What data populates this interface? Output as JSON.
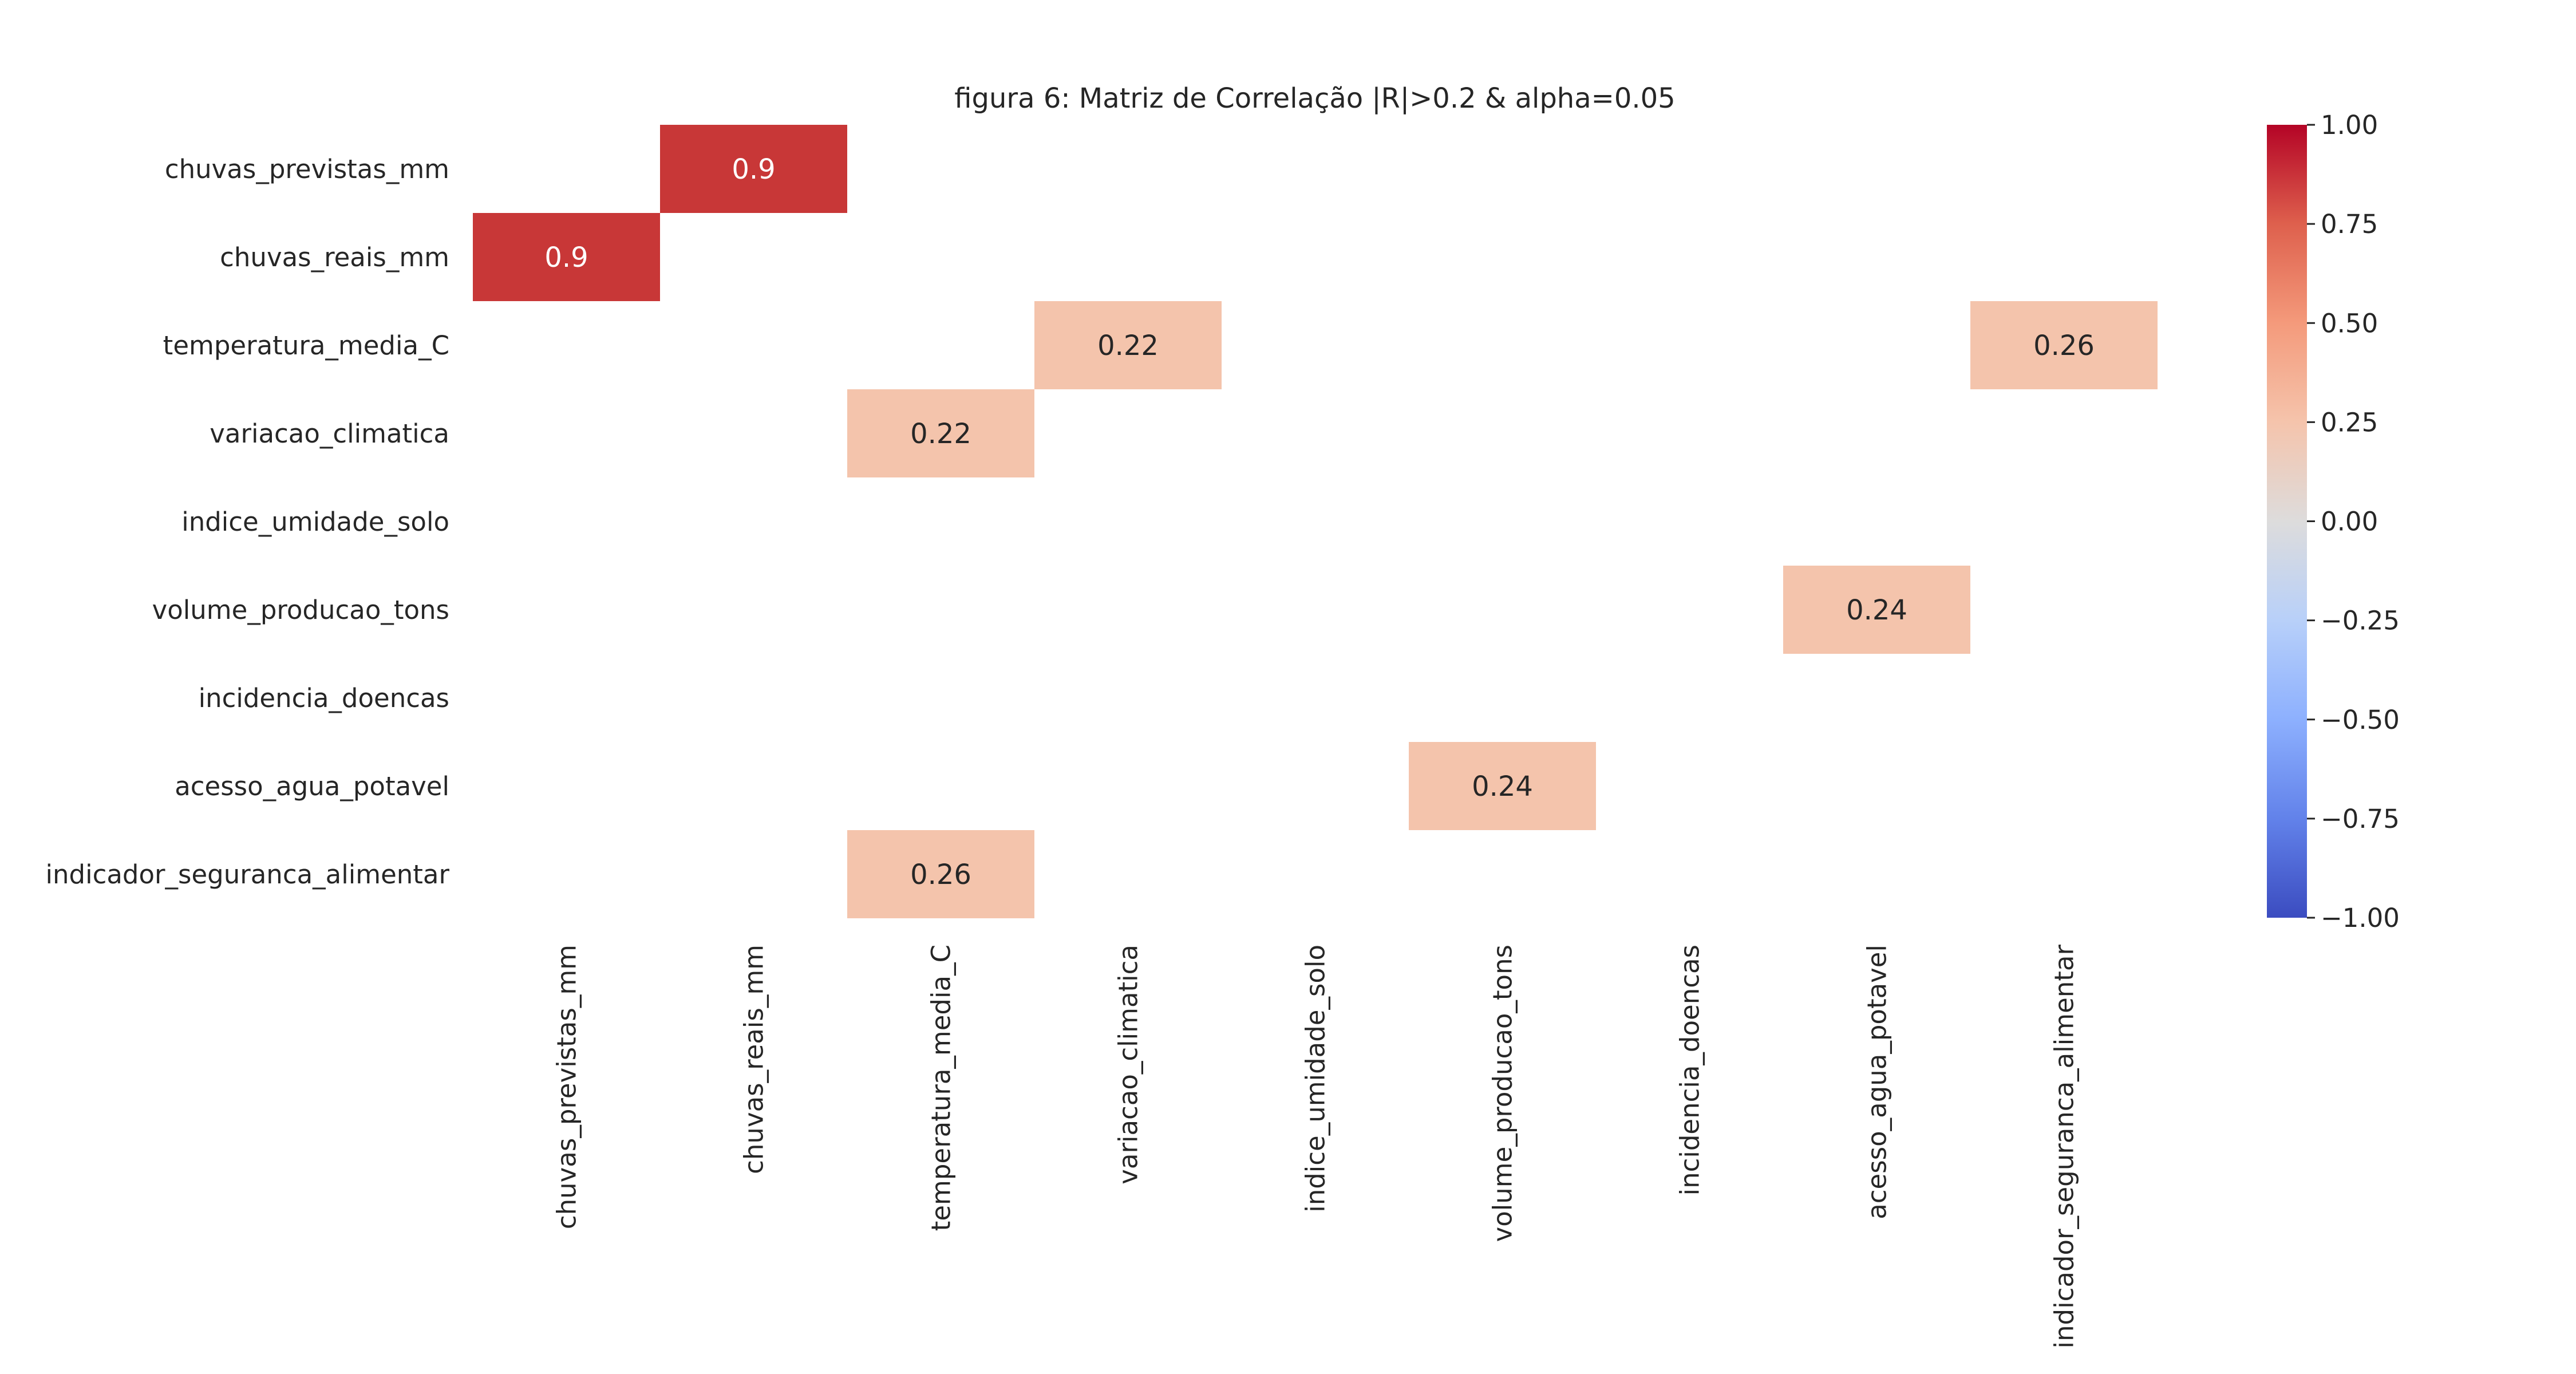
{
  "chart_data": {
    "type": "heatmap",
    "title": "figura 6: Matriz de Correlação |R|>0.2 & alpha=0.05",
    "row_labels": [
      "chuvas_previstas_mm",
      "chuvas_reais_mm",
      "temperatura_media_C",
      "variacao_climatica",
      "indice_umidade_solo",
      "volume_producao_tons",
      "incidencia_doencas",
      "acesso_agua_potavel",
      "indicador_seguranca_alimentar"
    ],
    "col_labels": [
      "chuvas_previstas_mm",
      "chuvas_reais_mm",
      "temperatura_media_C",
      "variacao_climatica",
      "indice_umidade_solo",
      "volume_producao_tons",
      "incidencia_doencas",
      "acesso_agua_potavel",
      "indicador_seguranca_alimentar"
    ],
    "cells": [
      {
        "row": 0,
        "col": 1,
        "value": 0.9,
        "label": "0.9"
      },
      {
        "row": 1,
        "col": 0,
        "value": 0.9,
        "label": "0.9"
      },
      {
        "row": 2,
        "col": 3,
        "value": 0.22,
        "label": "0.22"
      },
      {
        "row": 2,
        "col": 8,
        "value": 0.26,
        "label": "0.26"
      },
      {
        "row": 3,
        "col": 2,
        "value": 0.22,
        "label": "0.22"
      },
      {
        "row": 5,
        "col": 7,
        "value": 0.24,
        "label": "0.24"
      },
      {
        "row": 7,
        "col": 5,
        "value": 0.24,
        "label": "0.24"
      },
      {
        "row": 8,
        "col": 2,
        "value": 0.26,
        "label": "0.26"
      }
    ],
    "colorbar": {
      "range": [
        -1,
        1
      ],
      "colormap": "coolwarm",
      "ticks": [
        "1.00",
        "0.75",
        "0.50",
        "0.25",
        "0.00",
        "−0.25",
        "−0.50",
        "−0.75",
        "−1.00"
      ],
      "tick_values": [
        1,
        0.75,
        0.5,
        0.25,
        0,
        -0.25,
        -0.5,
        -0.75,
        -1
      ]
    },
    "colors": {
      "cell_high": "#c83737",
      "cell_low": "#f4c4ac",
      "text_on_dark": "#ffffff",
      "text_on_light": "#262626"
    },
    "grid": false,
    "legend": "colorbar-right"
  }
}
